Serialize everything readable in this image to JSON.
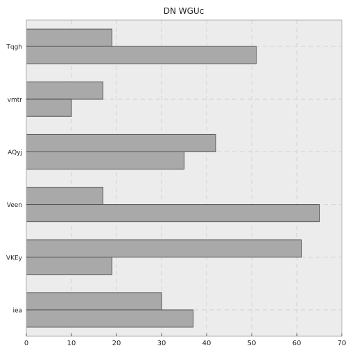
{
  "chart_data": {
    "type": "bar",
    "orientation": "horizontal",
    "title": "DN WGUc",
    "xlabel": "",
    "ylabel": "",
    "categories": [
      "Tqgh",
      "vmtr",
      "AQyj",
      "Veen",
      "VKEy",
      "iea"
    ],
    "series": [
      {
        "values": [
          19,
          17,
          42,
          17,
          61,
          30
        ]
      },
      {
        "values": [
          51,
          10,
          35,
          65,
          19,
          37
        ]
      }
    ],
    "xlim": [
      0,
      70
    ],
    "xticks": [
      0,
      10,
      20,
      30,
      40,
      50,
      60,
      70
    ],
    "grid": true,
    "legend": "none",
    "colors": {
      "bar_fill": "#a9a9a9",
      "bar_stroke": "#555555",
      "plot_bg": "#ececec",
      "grid": "#d2d2d2",
      "axis_frame": "#b0b0b0",
      "text": "#222222"
    }
  }
}
